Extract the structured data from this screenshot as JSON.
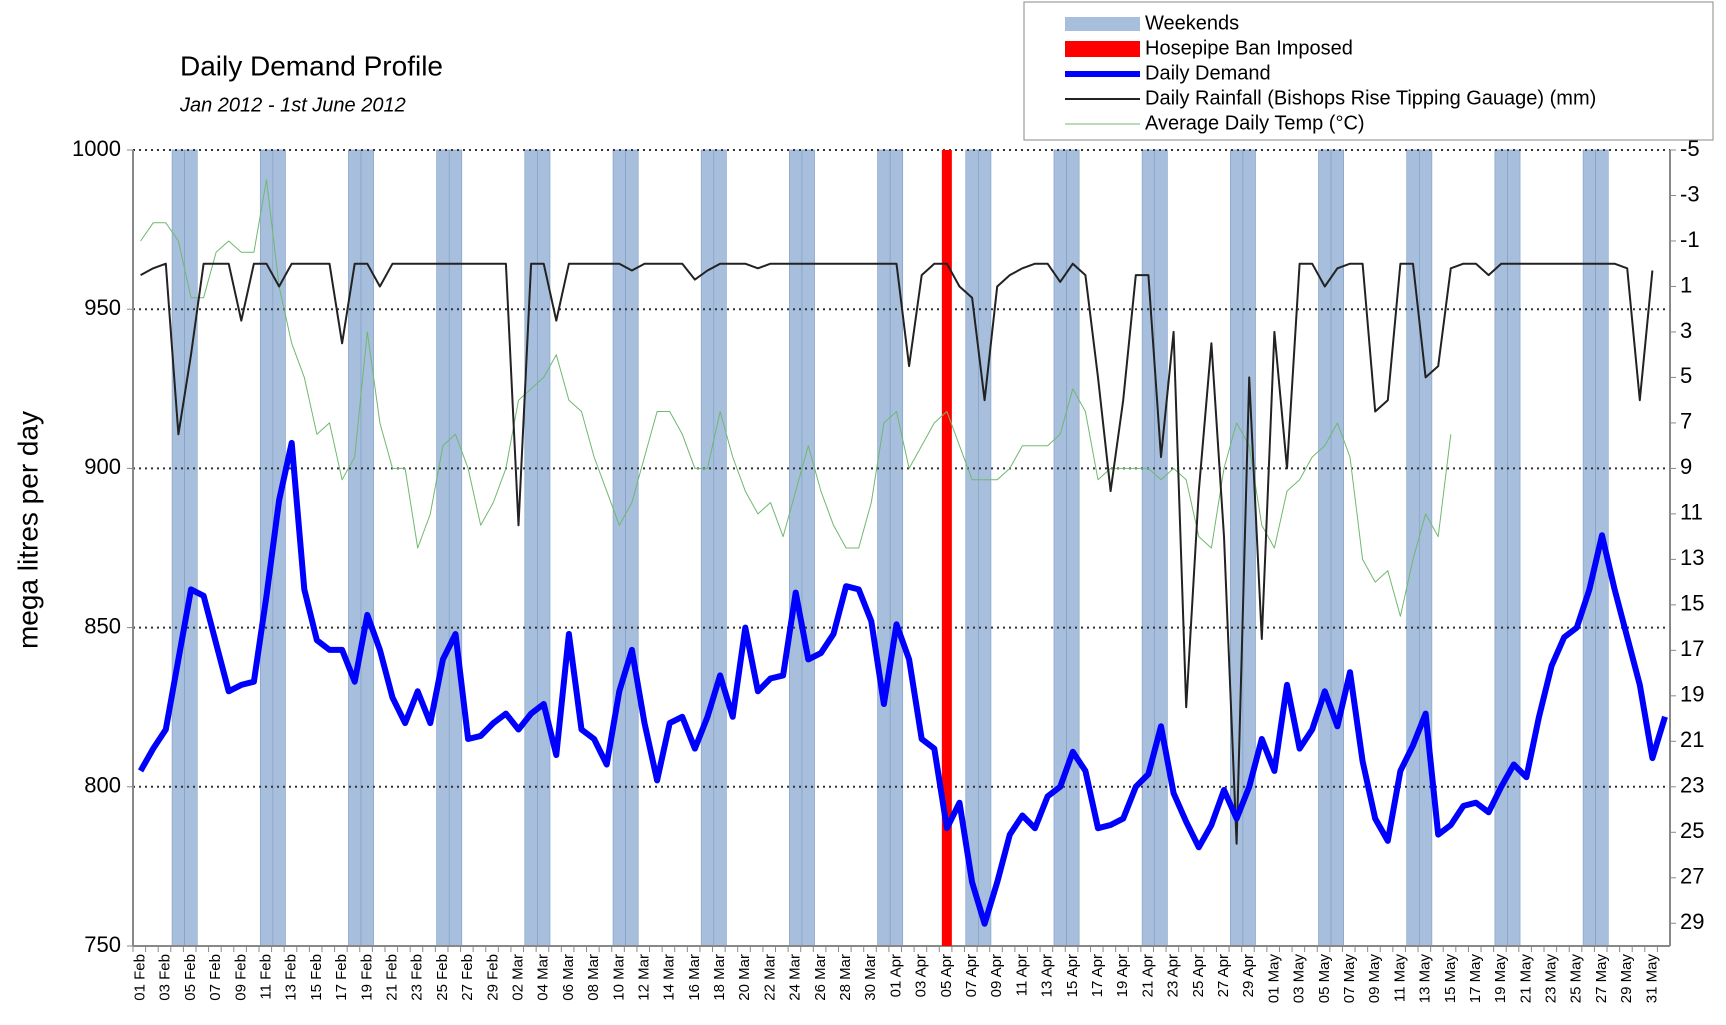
{
  "chart_data": {
    "type": "line",
    "title": "Daily Demand Profile",
    "subtitle": "Jan 2012 - 1st June 2012",
    "y_label": "mega litres per day",
    "categories": [
      "01 Feb",
      null,
      "03 Feb",
      null,
      "05 Feb",
      null,
      "07 Feb",
      null,
      "09 Feb",
      null,
      "11 Feb",
      null,
      "13 Feb",
      null,
      "15 Feb",
      null,
      "17 Feb",
      null,
      "19 Feb",
      null,
      "21 Feb",
      null,
      "23 Feb",
      null,
      "25 Feb",
      null,
      "27 Feb",
      null,
      "29 Feb",
      null,
      "02 Mar",
      null,
      "04 Mar",
      null,
      "06 Mar",
      null,
      "08 Mar",
      null,
      "10 Mar",
      null,
      "12 Mar",
      null,
      "14 Mar",
      null,
      "16 Mar",
      null,
      "18 Mar",
      null,
      "20 Mar",
      null,
      "22 Mar",
      null,
      "24 Mar",
      null,
      "26 Mar",
      null,
      "28 Mar",
      null,
      "30 Mar",
      null,
      "01 Apr",
      null,
      "03 Apr",
      null,
      "05 Apr",
      null,
      "07 Apr",
      null,
      "09 Apr",
      null,
      "11 Apr",
      null,
      "13 Apr",
      null,
      "15 Apr",
      null,
      "17 Apr",
      null,
      "19 Apr",
      null,
      "21 Apr",
      null,
      "23 Apr",
      null,
      "25 Apr",
      null,
      "27 Apr",
      null,
      "29 Apr",
      null,
      "01 May",
      null,
      "03 May",
      null,
      "05 May",
      null,
      "07 May",
      null,
      "09 May",
      null,
      "11 May",
      null,
      "13 May",
      null,
      "15 May",
      null,
      "17 May",
      null,
      "19 May",
      null,
      "21 May",
      null,
      "23 May",
      null,
      "25 May",
      null,
      "27 May",
      null,
      "29 May",
      null,
      "31 May",
      null
    ],
    "weekends": {
      "name": "Weekends",
      "color": "#a7bfdc",
      "indices": [
        3,
        4,
        10,
        11,
        17,
        18,
        24,
        25,
        31,
        32,
        38,
        39,
        45,
        46,
        52,
        53,
        59,
        60,
        66,
        67,
        73,
        74,
        80,
        81,
        87,
        88,
        94,
        95,
        101,
        102,
        108,
        109,
        115,
        116
      ]
    },
    "hosepipe_ban": {
      "name": "Hosepipe Ban Imposed",
      "color": "#ff0000",
      "index": 64
    },
    "series": [
      {
        "name": "Daily Demand",
        "color": "#0000ff",
        "axis": "y",
        "width": 6,
        "values": [
          805,
          812,
          818,
          840,
          862,
          860,
          845,
          830,
          832,
          833,
          860,
          890,
          908,
          862,
          846,
          843,
          843,
          833,
          854,
          843,
          828,
          820,
          830,
          820,
          840,
          848,
          815,
          816,
          820,
          823,
          818,
          823,
          826,
          810,
          848,
          818,
          815,
          807,
          830,
          843,
          820,
          802,
          820,
          822,
          812,
          822,
          835,
          822,
          850,
          830,
          834,
          835,
          861,
          840,
          842,
          848,
          863,
          862,
          852,
          826,
          851,
          840,
          815,
          812,
          787,
          795,
          770,
          757,
          770,
          785,
          791,
          787,
          797,
          800,
          811,
          805,
          787,
          788,
          790,
          800,
          804,
          819,
          798,
          789,
          781,
          788,
          799,
          790,
          800,
          815,
          805,
          832,
          812,
          818,
          830,
          819,
          836,
          808,
          790,
          783,
          805,
          813,
          823,
          785,
          788,
          794,
          795,
          792,
          800,
          807,
          803,
          822,
          838,
          847,
          850,
          862,
          879,
          862,
          847,
          832,
          809,
          822
        ]
      },
      {
        "name": "Daily Rainfall (Bishops Rise Tipping Gauage) (mm)",
        "color": "#222222",
        "axis": "y2",
        "width": 2,
        "values": [
          0.5,
          0.2,
          0,
          7.5,
          4,
          0,
          0,
          0,
          2.5,
          0,
          0,
          1,
          0,
          0,
          0,
          0,
          3.5,
          0,
          0,
          1,
          0,
          0,
          0,
          0,
          0,
          0,
          0,
          0,
          0,
          0,
          11.5,
          0,
          0,
          2.5,
          0,
          0,
          0,
          0,
          0,
          0.3,
          0,
          0,
          0,
          0,
          0.7,
          0.3,
          0,
          0,
          0,
          0.2,
          0,
          0,
          0,
          0,
          0,
          0,
          0,
          0,
          0,
          0,
          0,
          4.5,
          0.5,
          0,
          0,
          1,
          1.5,
          6,
          1,
          0.5,
          0.2,
          0,
          0,
          0.8,
          0,
          0.5,
          5,
          10,
          6,
          0.5,
          0.5,
          8.5,
          3,
          19.5,
          10,
          3.5,
          12,
          25.5,
          5,
          16.5,
          3,
          9,
          0,
          0,
          1,
          0.2,
          0,
          0,
          6.5,
          6,
          0,
          0,
          5,
          4.5,
          0.2,
          0,
          0,
          0.5,
          0,
          0,
          0,
          0,
          0,
          0,
          0,
          0,
          0,
          0,
          0.2,
          6,
          0.3,
          null
        ]
      },
      {
        "name": "Average Daily Temp (°C)",
        "color": "#70b870",
        "axis": "y2",
        "width": 1,
        "values": [
          -1,
          -1.8,
          -1.8,
          -1,
          1.5,
          1.5,
          -0.5,
          -1,
          -0.5,
          -0.5,
          -3.7,
          1,
          3.5,
          5,
          7.5,
          7,
          9.5,
          8.5,
          3,
          7,
          9,
          9,
          12.5,
          11,
          8,
          7.5,
          9,
          11.5,
          10.5,
          9,
          6,
          5.5,
          5,
          4,
          6,
          6.5,
          8.5,
          10,
          11.5,
          10.5,
          8.5,
          6.5,
          6.5,
          7.5,
          9,
          9,
          6.5,
          8.5,
          10,
          11,
          10.5,
          12,
          10,
          8,
          10,
          11.5,
          12.5,
          12.5,
          10.5,
          7,
          6.5,
          9,
          8,
          7,
          6.5,
          8,
          9.5,
          9.5,
          9.5,
          9,
          8,
          8,
          8,
          7.5,
          5.5,
          6.5,
          9.5,
          9,
          9,
          9,
          9,
          9.5,
          9,
          9.5,
          12,
          12.5,
          9,
          7,
          8,
          11.5,
          12.5,
          10,
          9.5,
          8.5,
          8,
          7,
          8.5,
          13,
          14,
          13.5,
          15.5,
          13,
          11,
          12,
          7.5,
          null,
          null,
          null,
          null,
          null,
          null,
          null,
          null,
          null,
          null,
          null,
          null,
          null,
          null,
          null,
          null,
          null
        ]
      }
    ],
    "ylim": [
      750,
      1000
    ],
    "yticks": [
      750,
      800,
      850,
      900,
      950,
      1000
    ],
    "y2lim": [
      -5,
      30
    ],
    "y2_inverted": true,
    "y2ticks": [
      -5,
      -3,
      -1,
      1,
      3,
      5,
      7,
      9,
      11,
      13,
      15,
      17,
      19,
      21,
      23,
      25,
      27,
      29
    ],
    "grid": true
  }
}
